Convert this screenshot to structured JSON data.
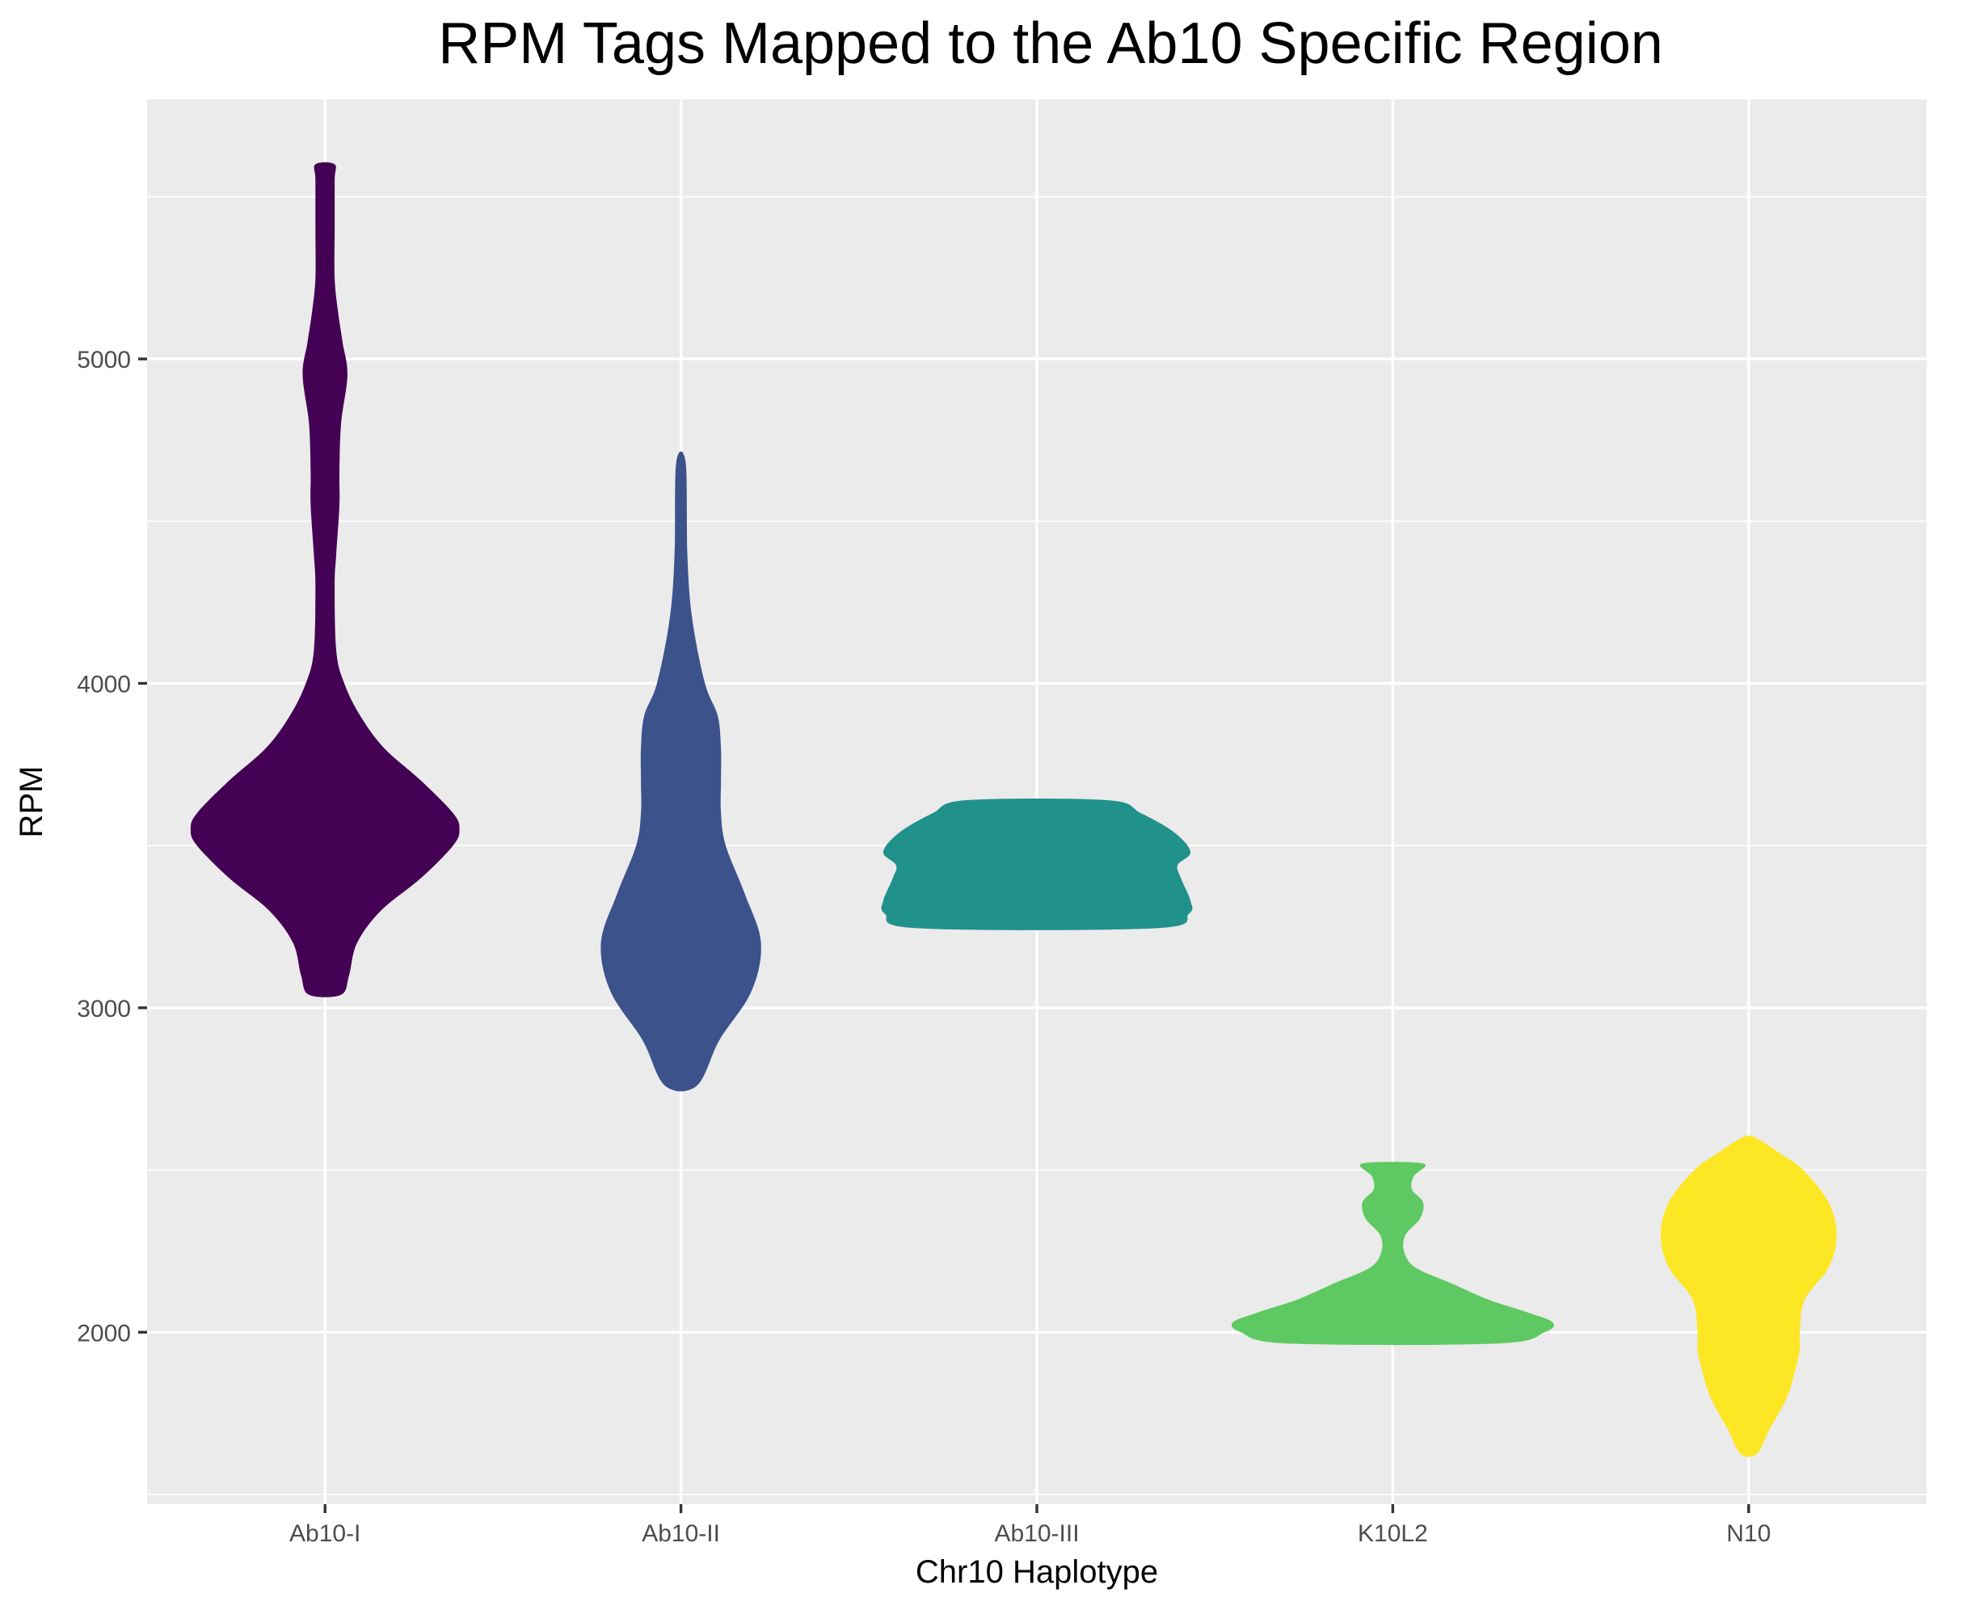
{
  "chart_data": {
    "type": "violin",
    "title": "RPM Tags Mapped to the Ab10 Specific Region",
    "xlabel": "Chr10 Haplotype",
    "ylabel": "RPM",
    "ylim": [
      1470,
      5800
    ],
    "yticks": [
      2000,
      3000,
      4000,
      5000
    ],
    "yminor": [
      1500,
      2500,
      3500,
      4500,
      5500
    ],
    "categories": [
      "Ab10-I",
      "Ab10-II",
      "Ab10-III",
      "K10L2",
      "N10"
    ],
    "grid": true,
    "series": [
      {
        "category": "Ab10-I",
        "color": "#440154",
        "min": 3040,
        "max": 5600,
        "density": [
          [
            3040,
            0.1
          ],
          [
            3100,
            0.15
          ],
          [
            3200,
            0.2
          ],
          [
            3300,
            0.35
          ],
          [
            3400,
            0.6
          ],
          [
            3500,
            0.8
          ],
          [
            3550,
            0.84
          ],
          [
            3600,
            0.8
          ],
          [
            3700,
            0.6
          ],
          [
            3800,
            0.37
          ],
          [
            3900,
            0.22
          ],
          [
            4000,
            0.12
          ],
          [
            4100,
            0.07
          ],
          [
            4300,
            0.06
          ],
          [
            4400,
            0.07
          ],
          [
            4550,
            0.09
          ],
          [
            4650,
            0.09
          ],
          [
            4800,
            0.1
          ],
          [
            4950,
            0.14
          ],
          [
            5050,
            0.11
          ],
          [
            5150,
            0.08
          ],
          [
            5250,
            0.06
          ],
          [
            5400,
            0.06
          ],
          [
            5550,
            0.06
          ],
          [
            5600,
            0.06
          ]
        ]
      },
      {
        "category": "Ab10-II",
        "color": "#3b528b",
        "min": 2760,
        "max": 4680,
        "density": [
          [
            2760,
            0.1
          ],
          [
            2900,
            0.24
          ],
          [
            3050,
            0.44
          ],
          [
            3200,
            0.5
          ],
          [
            3350,
            0.4
          ],
          [
            3500,
            0.28
          ],
          [
            3600,
            0.25
          ],
          [
            3700,
            0.25
          ],
          [
            3800,
            0.25
          ],
          [
            3900,
            0.23
          ],
          [
            4000,
            0.15
          ],
          [
            4200,
            0.07
          ],
          [
            4400,
            0.04
          ],
          [
            4680,
            0.03
          ]
        ]
      },
      {
        "category": "Ab10-III",
        "color": "#21918c",
        "min": 3245,
        "max": 3640,
        "density": [
          [
            3245,
            0.74
          ],
          [
            3290,
            0.95
          ],
          [
            3330,
            0.96
          ],
          [
            3400,
            0.9
          ],
          [
            3440,
            0.88
          ],
          [
            3480,
            0.96
          ],
          [
            3540,
            0.86
          ],
          [
            3600,
            0.65
          ],
          [
            3640,
            0.44
          ]
        ]
      },
      {
        "category": "K10L2",
        "color": "#5ec962",
        "min": 1965,
        "max": 2520,
        "density": [
          [
            1965,
            0.65
          ],
          [
            2000,
            0.95
          ],
          [
            2030,
            1.0
          ],
          [
            2060,
            0.85
          ],
          [
            2100,
            0.6
          ],
          [
            2150,
            0.37
          ],
          [
            2200,
            0.14
          ],
          [
            2250,
            0.07
          ],
          [
            2300,
            0.08
          ],
          [
            2350,
            0.17
          ],
          [
            2400,
            0.19
          ],
          [
            2440,
            0.12
          ],
          [
            2480,
            0.13
          ],
          [
            2520,
            0.19
          ]
        ]
      },
      {
        "category": "N10",
        "color": "#fde725",
        "min": 1625,
        "max": 2600,
        "density": [
          [
            1625,
            0.05
          ],
          [
            1700,
            0.13
          ],
          [
            1800,
            0.24
          ],
          [
            1900,
            0.3
          ],
          [
            1950,
            0.32
          ],
          [
            2000,
            0.32
          ],
          [
            2100,
            0.35
          ],
          [
            2200,
            0.5
          ],
          [
            2300,
            0.55
          ],
          [
            2400,
            0.5
          ],
          [
            2500,
            0.34
          ],
          [
            2550,
            0.2
          ],
          [
            2600,
            0.04
          ]
        ]
      }
    ]
  }
}
